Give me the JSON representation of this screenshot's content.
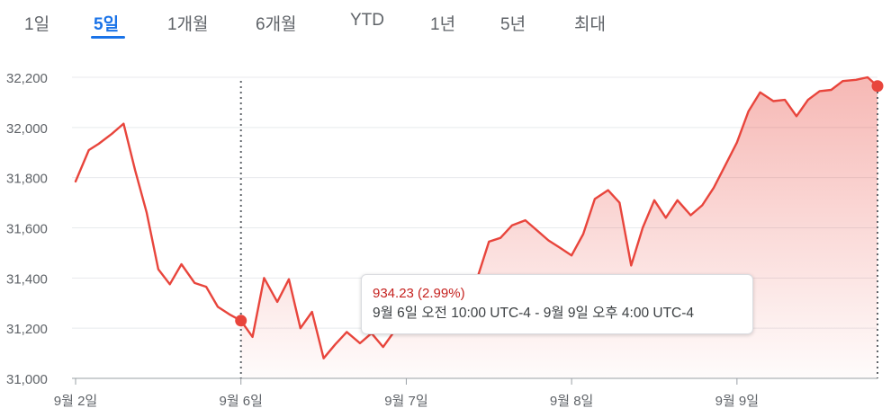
{
  "tabs": [
    {
      "label": "1일",
      "active": false
    },
    {
      "label": "5일",
      "active": true
    },
    {
      "label": "1개월",
      "active": false
    },
    {
      "label": "6개월",
      "active": false
    },
    {
      "label": "YTD",
      "active": false
    },
    {
      "label": "1년",
      "active": false
    },
    {
      "label": "5년",
      "active": false
    },
    {
      "label": "최대",
      "active": false
    }
  ],
  "tooltip": {
    "change": "934.23 (2.99%)",
    "range": "9월 6일 오전 10:00 UTC-4 - 9월 9일 오후 4:00 UTC-4"
  },
  "colors": {
    "line": "#e8453c",
    "fill": "#f4c7c3",
    "accent": "#1a73e8",
    "axis_text": "#5f6368",
    "grid": "#e8eaed"
  },
  "chart_data": {
    "type": "area",
    "ylim": [
      31000,
      32200
    ],
    "y_ticks": [
      "32,200",
      "32,000",
      "31,800",
      "31,600",
      "31,400",
      "31,200",
      "31,000"
    ],
    "y_tick_values": [
      32200,
      32000,
      31800,
      31600,
      31400,
      31200,
      31000
    ],
    "x_ticks": [
      "9월 2일",
      "9월 6일",
      "9월 7일",
      "9월 8일",
      "9월 9일"
    ],
    "x_tick_values": [
      0,
      1,
      2,
      3,
      4
    ],
    "x_range": [
      0,
      4.85
    ],
    "series": [
      {
        "x": [
          0,
          0.08,
          0.14,
          0.22,
          0.29,
          0.36,
          0.43,
          0.5,
          0.57,
          0.64,
          0.72,
          0.79,
          0.86,
          0.93,
          1.0,
          1.07,
          1.14,
          1.22,
          1.29,
          1.36,
          1.43,
          1.5,
          1.57,
          1.64,
          1.72,
          1.79,
          1.86,
          1.93,
          2.0,
          2.07,
          2.14,
          2.22,
          2.29,
          2.36,
          2.43,
          2.5,
          2.57,
          2.64,
          2.72,
          2.79,
          2.86,
          2.93,
          3.0,
          3.07,
          3.14,
          3.22,
          3.29,
          3.36,
          3.43,
          3.5,
          3.57,
          3.64,
          3.72,
          3.79,
          3.86,
          3.93,
          4.0,
          4.07,
          4.14,
          4.22,
          4.29,
          4.36,
          4.43,
          4.5,
          4.57,
          4.64,
          4.72,
          4.79,
          4.85
        ],
        "values": [
          31785,
          31910,
          31935,
          31975,
          32015,
          31830,
          31660,
          31435,
          31375,
          31455,
          31380,
          31365,
          31285,
          31255,
          31230,
          31165,
          31400,
          31305,
          31395,
          31200,
          31265,
          31080,
          31135,
          31185,
          31140,
          31180,
          31125,
          31190,
          31220,
          31250,
          31300,
          31320,
          31340,
          31370,
          31400,
          31545,
          31560,
          31610,
          31630,
          31590,
          31550,
          31520,
          31490,
          31575,
          31715,
          31750,
          31700,
          31450,
          31600,
          31710,
          31640,
          31710,
          31650,
          31690,
          31760,
          31850,
          31940,
          32065,
          32140,
          32105,
          32110,
          32045,
          32110,
          32145,
          32150,
          32185,
          32190,
          32200,
          32165
        ]
      }
    ],
    "reference_lines_x": [
      1.0,
      4.85
    ],
    "markers": [
      {
        "x": 1.0,
        "value": 31230
      },
      {
        "x": 4.85,
        "value": 32165
      }
    ]
  }
}
